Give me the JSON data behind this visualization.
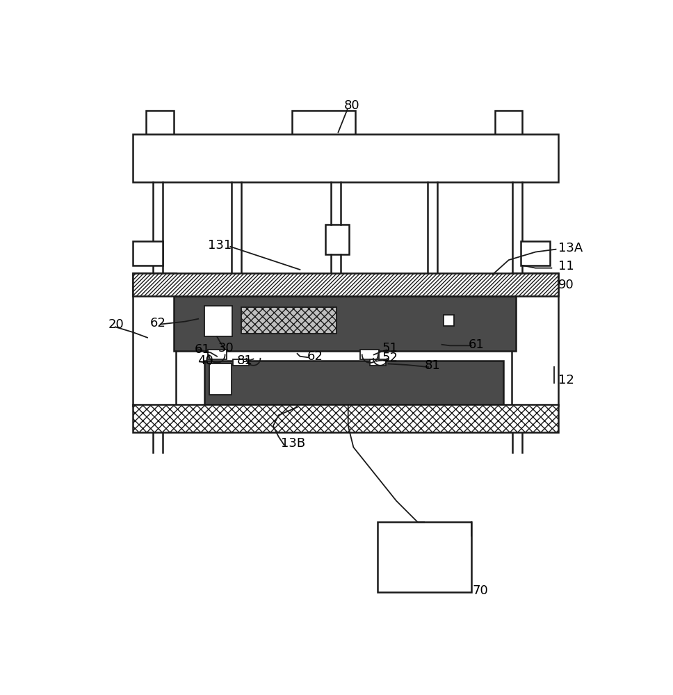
{
  "bg_color": "#ffffff",
  "lc": "#1a1a1a",
  "dark_fill": "#4a4a4a",
  "dark_fill2": "#3a3a3a",
  "hatch_diag_color": "#333333",
  "label_fontsize": 13
}
